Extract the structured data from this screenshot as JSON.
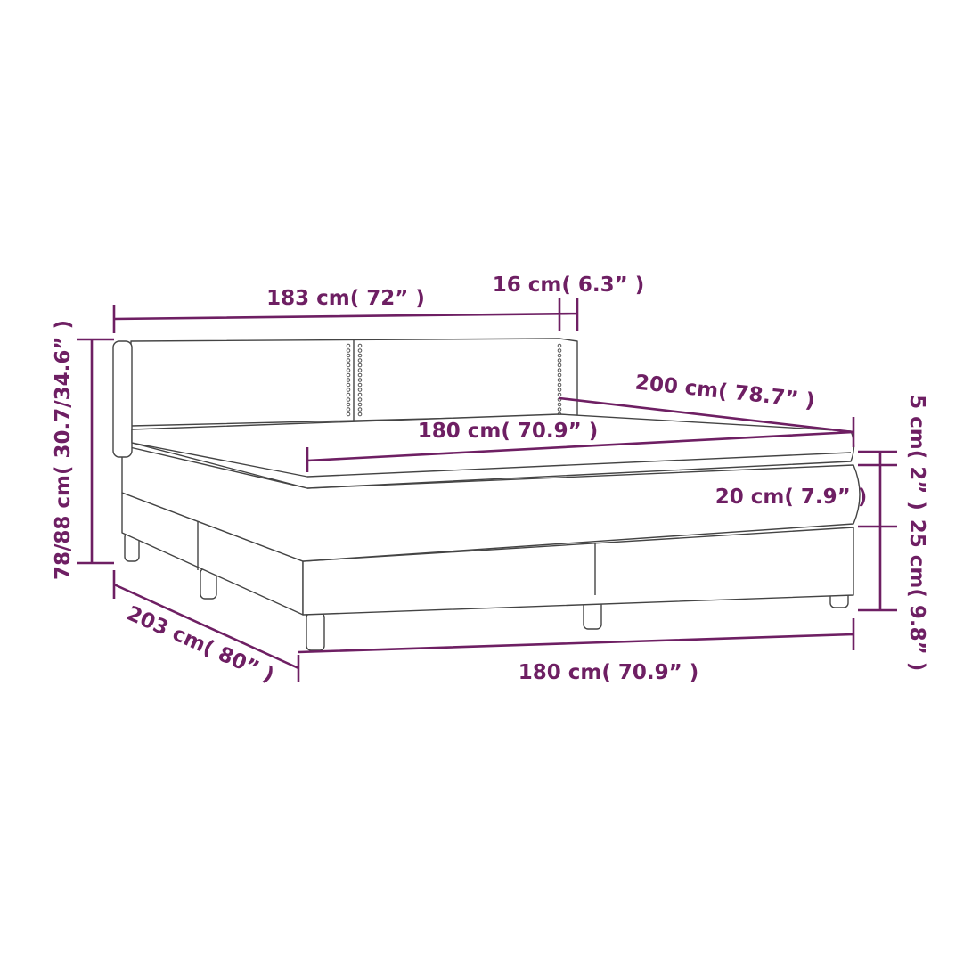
{
  "colors": {
    "dimension": "#6e1f63",
    "outline": "#444444"
  },
  "dimensions": {
    "headboard_width": "183 cm( 72” )",
    "headboard_depth": "16 cm( 6.3” )",
    "total_height": "78/88 cm( 30.7/34.6” )",
    "length_top": "200 cm( 78.7” )",
    "mattress_width": "180 cm( 70.9” )",
    "topper_height": "5 cm( 2” )",
    "mattress_height": "20 cm( 7.9” )",
    "base_height": "25 cm( 9.8” )",
    "total_length": "203 cm( 80” )",
    "base_width": "180 cm( 70.9” )"
  }
}
